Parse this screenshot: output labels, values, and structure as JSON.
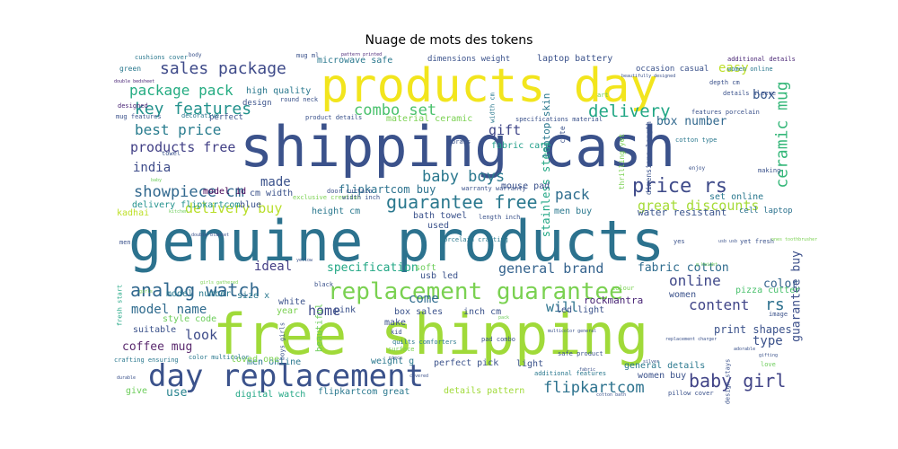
{
  "chart_data": {
    "type": "wordcloud",
    "title": "Nuage de mots des tokens",
    "background": "#ffffff",
    "words": [
      {
        "text": "shipping cash",
        "color": "#3b528b"
      },
      {
        "text": "genuine products",
        "color": "#2c728e"
      },
      {
        "text": "free shipping",
        "color": "#a0da39"
      },
      {
        "text": "products day",
        "color": "#f2e51d"
      },
      {
        "text": "day replacement",
        "color": "#3b528b"
      },
      {
        "text": "replacement guarantee",
        "color": "#7ad151"
      },
      {
        "text": "analog watch",
        "color": "#31688e"
      },
      {
        "text": "sales package",
        "color": "#3e4a89"
      },
      {
        "text": "key features",
        "color": "#21918c"
      },
      {
        "text": "package pack",
        "color": "#25ac82"
      },
      {
        "text": "combo set",
        "color": "#4ac16d"
      },
      {
        "text": "guarantee free",
        "color": "#2a788e"
      },
      {
        "text": "price rs",
        "color": "#3e4a89"
      },
      {
        "text": "delivery",
        "color": "#22a785"
      },
      {
        "text": "best price",
        "color": "#287c8e"
      },
      {
        "text": "products free",
        "color": "#424086"
      },
      {
        "text": "showpiece cm",
        "color": "#31688e"
      },
      {
        "text": "ceramic mug",
        "color": "#35b779"
      },
      {
        "text": "general brand",
        "color": "#33628d"
      },
      {
        "text": "flipkartcom",
        "color": "#2c728e"
      },
      {
        "text": "baby girl",
        "color": "#414487"
      },
      {
        "text": "coffee mug",
        "color": "#5a2a6e"
      },
      {
        "text": "baby boys",
        "color": "#2a788e"
      },
      {
        "text": "great discounts",
        "color": "#a5db36"
      },
      {
        "text": "delivery buy",
        "color": "#b8de29"
      },
      {
        "text": "fabric cotton",
        "color": "#2f6c8e"
      },
      {
        "text": "india",
        "color": "#3e4c8a"
      },
      {
        "text": "made",
        "color": "#3b528b"
      },
      {
        "text": "pack",
        "color": "#2e6d8e"
      },
      {
        "text": "gift",
        "color": "#404688"
      },
      {
        "text": "online",
        "color": "#3f4889"
      },
      {
        "text": "content",
        "color": "#404588"
      },
      {
        "text": "rs",
        "color": "#2d708e"
      },
      {
        "text": "color",
        "color": "#33638d"
      },
      {
        "text": "box",
        "color": "#38588c"
      },
      {
        "text": "box number",
        "color": "#31688e"
      },
      {
        "text": "model name",
        "color": "#2f6b8e"
      },
      {
        "text": "specification",
        "color": "#22a785"
      },
      {
        "text": "ideal",
        "color": "#433d84"
      },
      {
        "text": "home",
        "color": "#3e4a89"
      },
      {
        "text": "look",
        "color": "#3e4c8a"
      },
      {
        "text": "come",
        "color": "#2f6c8e"
      },
      {
        "text": "will",
        "color": "#2c738e"
      },
      {
        "text": "type",
        "color": "#3b528b"
      },
      {
        "text": "guarantee buy",
        "color": "#3c4f8a"
      },
      {
        "text": "easy",
        "color": "#bddf26"
      },
      {
        "text": "print shapes",
        "color": "#3b528b"
      },
      {
        "text": "use",
        "color": "#26828e"
      },
      {
        "text": "flipkartcom buy",
        "color": "#2c728e"
      },
      {
        "text": "water resistant",
        "color": "#3a548c"
      },
      {
        "text": "rockmantra",
        "color": "#482475"
      },
      {
        "text": "laptop battery",
        "color": "#3b528b"
      },
      {
        "text": "microwave safe",
        "color": "#2a788e"
      },
      {
        "text": "high quality",
        "color": "#2a788e"
      },
      {
        "text": "stainless steel",
        "color": "#22a785"
      },
      {
        "text": "laptop skin",
        "color": "#2a788e"
      },
      {
        "text": "fabric care",
        "color": "#1f9e89"
      },
      {
        "text": "mouse pad",
        "color": "#3b528b"
      },
      {
        "text": "material ceramic",
        "color": "#7ad151"
      },
      {
        "text": "model id",
        "color": "#440154"
      },
      {
        "text": "delivery flipkartcom",
        "color": "#21918c"
      },
      {
        "text": "cm width",
        "color": "#3b528b"
      },
      {
        "text": "height cm",
        "color": "#2a788e"
      },
      {
        "text": "bath towel",
        "color": "#3b528b"
      },
      {
        "text": "used",
        "color": "#3b528b"
      },
      {
        "text": "men buy",
        "color": "#2a788e"
      },
      {
        "text": "set online",
        "color": "#2a788e"
      },
      {
        "text": "cell laptop",
        "color": "#2c728e"
      },
      {
        "text": "kadhai",
        "color": "#bddf26"
      },
      {
        "text": "soft",
        "color": "#6ccd5a"
      },
      {
        "text": "usb led",
        "color": "#3b528b"
      },
      {
        "text": "women",
        "color": "#3b528b"
      },
      {
        "text": "pizza cutter",
        "color": "#4ac16d"
      },
      {
        "text": "model number",
        "color": "#2a788e"
      },
      {
        "text": "size x",
        "color": "#2a788e"
      },
      {
        "text": "style code",
        "color": "#6ccd5a"
      },
      {
        "text": "suitable",
        "color": "#3b528b"
      },
      {
        "text": "pink",
        "color": "#3b528b"
      },
      {
        "text": "year",
        "color": "#7ad151"
      },
      {
        "text": "white",
        "color": "#3b528b"
      },
      {
        "text": "box sales",
        "color": "#3b528b"
      },
      {
        "text": "inch cm",
        "color": "#3b528b"
      },
      {
        "text": "led light",
        "color": "#3b528b"
      },
      {
        "text": "beautiful",
        "color": "#6ccd5a"
      },
      {
        "text": "make",
        "color": "#3b528b"
      },
      {
        "text": "weight g",
        "color": "#2a788e"
      },
      {
        "text": "perfect pick",
        "color": "#3b528b"
      },
      {
        "text": "light",
        "color": "#3b528b"
      },
      {
        "text": "general details",
        "color": "#2a788e"
      },
      {
        "text": "women buy",
        "color": "#3b528b"
      },
      {
        "text": "details pattern",
        "color": "#a0da39"
      },
      {
        "text": "flipkartcom great",
        "color": "#2a788e"
      },
      {
        "text": "digital watch",
        "color": "#22a785"
      },
      {
        "text": "give",
        "color": "#6ccd5a"
      },
      {
        "text": "men online",
        "color": "#2a788e"
      },
      {
        "text": "loved one",
        "color": "#7ad151"
      },
      {
        "text": "perfect",
        "color": "#3b528b"
      },
      {
        "text": "design",
        "color": "#3b528b"
      },
      {
        "text": "dimensions weight",
        "color": "#3b528b"
      },
      {
        "text": "occasion casual",
        "color": "#3b528b"
      },
      {
        "text": "additional details",
        "color": "#482475"
      },
      {
        "text": "women online",
        "color": "#2a788e"
      },
      {
        "text": "green",
        "color": "#2a788e"
      },
      {
        "text": "cushions cover",
        "color": "#2a788e"
      },
      {
        "text": "blue",
        "color": "#3b528b"
      },
      {
        "text": "round neck",
        "color": "#3b528b"
      },
      {
        "text": "mug features",
        "color": "#3b528b"
      },
      {
        "text": "product details",
        "color": "#3b528b"
      },
      {
        "text": "decorative",
        "color": "#2a788e"
      },
      {
        "text": "designed",
        "color": "#482475"
      },
      {
        "text": "towel",
        "color": "#3b528b"
      },
      {
        "text": "exclusive creation",
        "color": "#7ad151"
      },
      {
        "text": "width inch",
        "color": "#3b528b"
      },
      {
        "text": "door curtain",
        "color": "#3b528b"
      },
      {
        "text": "length inch",
        "color": "#3b528b"
      },
      {
        "text": "warranty warranty",
        "color": "#3b528b"
      },
      {
        "text": "crafting ensuring",
        "color": "#2a788e"
      },
      {
        "text": "fresh start",
        "color": "#22a785"
      },
      {
        "text": "quilts comforters",
        "color": "#2a788e"
      },
      {
        "text": "color multicolor",
        "color": "#2a788e"
      },
      {
        "text": "safe product",
        "color": "#3b528b"
      },
      {
        "text": "additional features",
        "color": "#2a788e"
      },
      {
        "text": "pillow cover",
        "color": "#3b528b"
      },
      {
        "text": "details sleeve",
        "color": "#3b528b"
      },
      {
        "text": "depth cm",
        "color": "#3b528b"
      },
      {
        "text": "features porcelain",
        "color": "#3b528b"
      },
      {
        "text": "making",
        "color": "#3b528b"
      },
      {
        "text": "yet fresh",
        "color": "#3b528b"
      },
      {
        "text": "mug ml",
        "color": "#3b528b"
      },
      {
        "text": "cotton type",
        "color": "#2a788e"
      },
      {
        "text": "brass",
        "color": "#3b528b"
      },
      {
        "text": "art",
        "color": "#6ccd5a"
      },
      {
        "text": "cute",
        "color": "#3b528b"
      },
      {
        "text": "thrilling yet",
        "color": "#7ad151"
      },
      {
        "text": "dimensions length",
        "color": "#3b528b"
      },
      {
        "text": "width cm",
        "color": "#2a788e"
      },
      {
        "text": "specifications material",
        "color": "#3b528b"
      },
      {
        "text": "porcelain crafting",
        "color": "#2a788e"
      },
      {
        "text": "love",
        "color": "#6ccd5a"
      },
      {
        "text": "surface",
        "color": "#7ad151"
      },
      {
        "text": "colour",
        "color": "#7ad151"
      },
      {
        "text": "boys girls",
        "color": "#3b528b"
      },
      {
        "text": "pad combo",
        "color": "#3b528b"
      },
      {
        "text": "kid",
        "color": "#3b528b"
      },
      {
        "text": "black",
        "color": "#3b528b"
      },
      {
        "text": "design stays",
        "color": "#3b528b"
      },
      {
        "text": "image",
        "color": "#3b528b"
      },
      {
        "text": "men",
        "color": "#3b528b"
      },
      {
        "text": "yes",
        "color": "#3b528b"
      },
      {
        "text": "kitchen",
        "color": "#6ccd5a"
      },
      {
        "text": "double bedsheet",
        "color": "#482475"
      },
      {
        "text": "double blanket",
        "color": "#3b528b"
      },
      {
        "text": "girls gathered",
        "color": "#7ad151"
      },
      {
        "text": "multicolor general",
        "color": "#3b528b"
      },
      {
        "text": "gifting",
        "color": "#3b528b"
      },
      {
        "text": "adorable",
        "color": "#3b528b"
      },
      {
        "text": "cotton bath",
        "color": "#3b528b"
      },
      {
        "text": "beautifully designed",
        "color": "#3b528b"
      },
      {
        "text": "usb usb",
        "color": "#3b528b"
      },
      {
        "text": "replacement charger",
        "color": "#3b528b"
      },
      {
        "text": "girls",
        "color": "#7ad151"
      },
      {
        "text": "pattern printed",
        "color": "#482475"
      },
      {
        "text": "covered",
        "color": "#3b528b"
      },
      {
        "text": "piece",
        "color": "#3b528b"
      },
      {
        "text": "fabric",
        "color": "#3b528b"
      },
      {
        "text": "silver",
        "color": "#3b528b"
      },
      {
        "text": "durable",
        "color": "#3b528b"
      },
      {
        "text": "g height",
        "color": "#6ccd5a"
      },
      {
        "text": "pack",
        "color": "#6ccd5a"
      },
      {
        "text": "enjoy",
        "color": "#3b528b"
      },
      {
        "text": "yellow",
        "color": "#3b528b"
      },
      {
        "text": "body",
        "color": "#3b528b"
      },
      {
        "text": "ones toothbrusher",
        "color": "#7ad151"
      },
      {
        "text": "baby",
        "color": "#6ccd5a"
      },
      {
        "text": "gold plating",
        "color": "#3b528b"
      }
    ]
  }
}
